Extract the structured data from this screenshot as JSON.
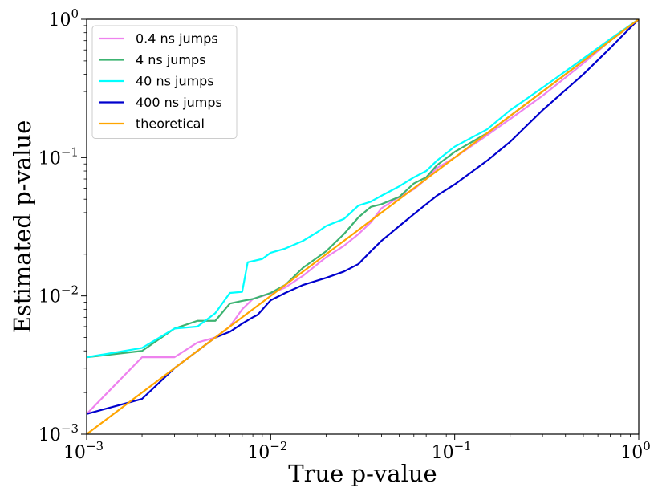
{
  "chart_data": {
    "type": "line",
    "xlabel": "True p-value",
    "ylabel": "Estimated p-value",
    "xscale": "log",
    "yscale": "log",
    "xlim": [
      0.001,
      1
    ],
    "ylim": [
      0.001,
      1
    ],
    "x_ticks": [
      {
        "base": "10",
        "exp": "−3",
        "value": 0.001
      },
      {
        "base": "10",
        "exp": "−2",
        "value": 0.01
      },
      {
        "base": "10",
        "exp": "−1",
        "value": 0.1
      },
      {
        "base": "10",
        "exp": "0",
        "value": 1
      }
    ],
    "y_ticks": [
      {
        "base": "10",
        "exp": "−3",
        "value": 0.001
      },
      {
        "base": "10",
        "exp": "−2",
        "value": 0.01
      },
      {
        "base": "10",
        "exp": "−1",
        "value": 0.1
      },
      {
        "base": "10",
        "exp": "0",
        "value": 1
      }
    ],
    "grid": false,
    "legend_position": "top-left",
    "series": [
      {
        "name": "0.4 ns jumps",
        "color": "#ee82ee",
        "points": [
          [
            0.001,
            0.0014
          ],
          [
            0.002,
            0.0036
          ],
          [
            0.003,
            0.0036
          ],
          [
            0.004,
            0.0046
          ],
          [
            0.005,
            0.005
          ],
          [
            0.006,
            0.006
          ],
          [
            0.007,
            0.008
          ],
          [
            0.008,
            0.0095
          ],
          [
            0.01,
            0.0104
          ],
          [
            0.012,
            0.0115
          ],
          [
            0.015,
            0.014
          ],
          [
            0.018,
            0.017
          ],
          [
            0.02,
            0.019
          ],
          [
            0.025,
            0.023
          ],
          [
            0.03,
            0.028
          ],
          [
            0.035,
            0.034
          ],
          [
            0.04,
            0.043
          ],
          [
            0.05,
            0.052
          ],
          [
            0.06,
            0.059
          ],
          [
            0.07,
            0.07
          ],
          [
            0.08,
            0.084
          ],
          [
            0.1,
            0.1
          ],
          [
            0.15,
            0.145
          ],
          [
            0.2,
            0.19
          ],
          [
            0.3,
            0.28
          ],
          [
            0.5,
            0.48
          ],
          [
            0.7,
            0.7
          ],
          [
            1,
            1
          ]
        ]
      },
      {
        "name": "4 ns jumps",
        "color": "#3cb371",
        "points": [
          [
            0.001,
            0.0036
          ],
          [
            0.002,
            0.004
          ],
          [
            0.003,
            0.0058
          ],
          [
            0.004,
            0.0066
          ],
          [
            0.005,
            0.0066
          ],
          [
            0.006,
            0.0088
          ],
          [
            0.007,
            0.0092
          ],
          [
            0.008,
            0.0095
          ],
          [
            0.01,
            0.0105
          ],
          [
            0.012,
            0.012
          ],
          [
            0.015,
            0.016
          ],
          [
            0.018,
            0.019
          ],
          [
            0.02,
            0.021
          ],
          [
            0.025,
            0.028
          ],
          [
            0.03,
            0.037
          ],
          [
            0.035,
            0.044
          ],
          [
            0.04,
            0.046
          ],
          [
            0.05,
            0.052
          ],
          [
            0.06,
            0.065
          ],
          [
            0.07,
            0.072
          ],
          [
            0.08,
            0.088
          ],
          [
            0.1,
            0.11
          ],
          [
            0.15,
            0.15
          ],
          [
            0.2,
            0.2
          ],
          [
            0.3,
            0.3
          ],
          [
            0.5,
            0.5
          ],
          [
            0.7,
            0.7
          ],
          [
            1,
            1
          ]
        ]
      },
      {
        "name": "40 ns jumps",
        "color": "#00ffff",
        "points": [
          [
            0.001,
            0.0036
          ],
          [
            0.002,
            0.0042
          ],
          [
            0.003,
            0.0058
          ],
          [
            0.004,
            0.006
          ],
          [
            0.005,
            0.0075
          ],
          [
            0.006,
            0.0105
          ],
          [
            0.007,
            0.0107
          ],
          [
            0.0075,
            0.0175
          ],
          [
            0.009,
            0.0185
          ],
          [
            0.01,
            0.0205
          ],
          [
            0.012,
            0.022
          ],
          [
            0.015,
            0.025
          ],
          [
            0.018,
            0.029
          ],
          [
            0.02,
            0.032
          ],
          [
            0.025,
            0.036
          ],
          [
            0.03,
            0.045
          ],
          [
            0.035,
            0.048
          ],
          [
            0.04,
            0.053
          ],
          [
            0.05,
            0.062
          ],
          [
            0.06,
            0.072
          ],
          [
            0.07,
            0.08
          ],
          [
            0.08,
            0.095
          ],
          [
            0.1,
            0.12
          ],
          [
            0.15,
            0.16
          ],
          [
            0.2,
            0.22
          ],
          [
            0.3,
            0.32
          ],
          [
            0.5,
            0.52
          ],
          [
            0.7,
            0.72
          ],
          [
            1,
            1
          ]
        ]
      },
      {
        "name": "400 ns jumps",
        "color": "#0000cd",
        "points": [
          [
            0.001,
            0.0014
          ],
          [
            0.002,
            0.0018
          ],
          [
            0.003,
            0.003
          ],
          [
            0.004,
            0.004
          ],
          [
            0.005,
            0.005
          ],
          [
            0.006,
            0.0055
          ],
          [
            0.007,
            0.0063
          ],
          [
            0.008,
            0.007
          ],
          [
            0.0085,
            0.0073
          ],
          [
            0.01,
            0.0093
          ],
          [
            0.012,
            0.0105
          ],
          [
            0.015,
            0.012
          ],
          [
            0.02,
            0.0135
          ],
          [
            0.025,
            0.015
          ],
          [
            0.03,
            0.017
          ],
          [
            0.035,
            0.021
          ],
          [
            0.04,
            0.025
          ],
          [
            0.05,
            0.032
          ],
          [
            0.06,
            0.039
          ],
          [
            0.07,
            0.046
          ],
          [
            0.08,
            0.053
          ],
          [
            0.1,
            0.064
          ],
          [
            0.15,
            0.095
          ],
          [
            0.2,
            0.13
          ],
          [
            0.3,
            0.22
          ],
          [
            0.5,
            0.4
          ],
          [
            0.7,
            0.62
          ],
          [
            1,
            1
          ]
        ]
      },
      {
        "name": "theoretical",
        "color": "#ffa500",
        "points": [
          [
            0.001,
            0.001
          ],
          [
            1,
            1
          ]
        ]
      }
    ]
  }
}
